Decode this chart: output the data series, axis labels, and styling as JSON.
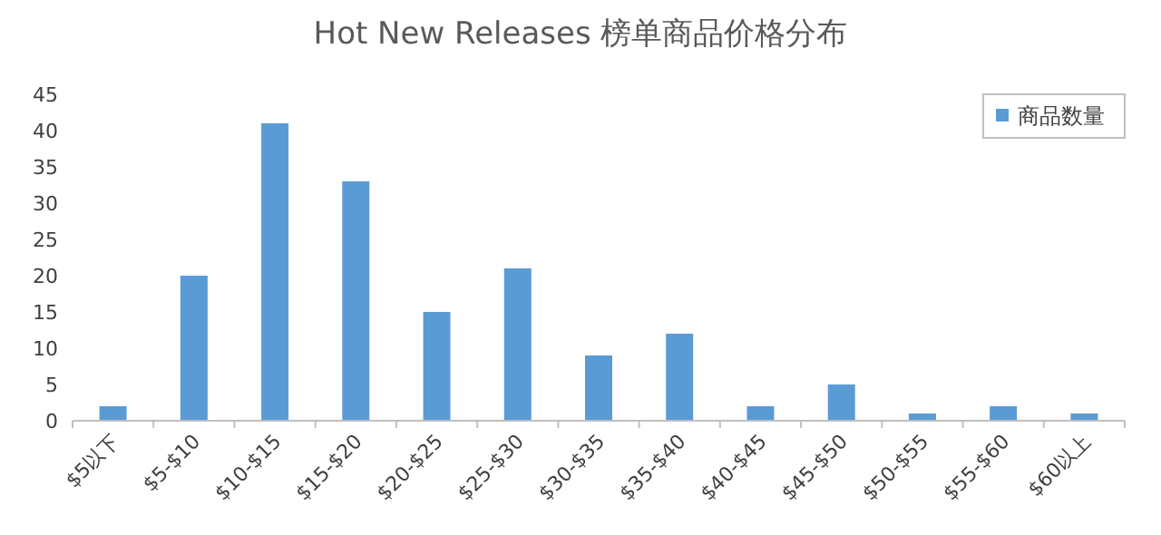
{
  "chart_data": {
    "type": "bar",
    "title": "Hot New Releases 榜单商品价格分布",
    "categories": [
      "$5以下",
      "$5-$10",
      "$10-$15",
      "$15-$20",
      "$20-$25",
      "$25-$30",
      "$30-$35",
      "$35-$40",
      "$40-$45",
      "$45-$50",
      "$50-$55",
      "$55-$60",
      "$60以上"
    ],
    "series": [
      {
        "name": "商品数量",
        "color": "#5b9bd5",
        "values": [
          2,
          20,
          41,
          33,
          15,
          21,
          9,
          12,
          2,
          5,
          1,
          2,
          1
        ]
      }
    ],
    "ylim": [
      0,
      45
    ],
    "yticks": [
      0,
      5,
      10,
      15,
      20,
      25,
      30,
      35,
      40,
      45
    ],
    "legend": "top right",
    "grid": false
  }
}
